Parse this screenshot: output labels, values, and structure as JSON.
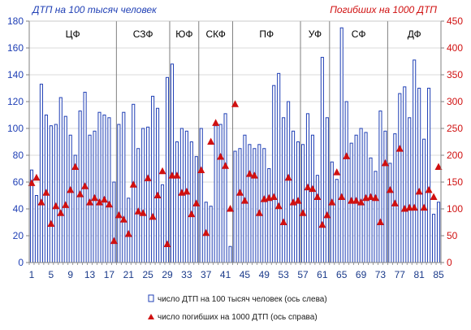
{
  "chart_data": {
    "type": "bar",
    "title_left": "ДТП на 100 тысяч человек",
    "title_right": "Погибших на 1000 ДТП",
    "colors": {
      "bar": "#1f3fb5",
      "marker": "#d01010",
      "grid": "#b8b8b8",
      "separator": "#808080"
    },
    "x": [
      1,
      2,
      3,
      4,
      5,
      6,
      7,
      8,
      9,
      10,
      11,
      12,
      13,
      14,
      15,
      16,
      17,
      18,
      19,
      20,
      21,
      22,
      23,
      24,
      25,
      26,
      27,
      28,
      29,
      30,
      31,
      32,
      33,
      34,
      35,
      36,
      37,
      38,
      39,
      40,
      41,
      42,
      43,
      44,
      45,
      46,
      47,
      48,
      49,
      50,
      51,
      52,
      53,
      54,
      55,
      56,
      57,
      58,
      59,
      60,
      61,
      62,
      63,
      64,
      65,
      66,
      67,
      68,
      69,
      70,
      71,
      72,
      73,
      74,
      75,
      76,
      77,
      78,
      79,
      80,
      81,
      82,
      83,
      84,
      85
    ],
    "x_tick_labels": [
      "1",
      "5",
      "9",
      "13",
      "17",
      "21",
      "25",
      "29",
      "33",
      "37",
      "41",
      "45",
      "49",
      "53",
      "57",
      "61",
      "65",
      "69",
      "73",
      "77",
      "81",
      "85"
    ],
    "x_tick_values": [
      1,
      5,
      9,
      13,
      17,
      21,
      25,
      29,
      33,
      37,
      41,
      45,
      49,
      53,
      57,
      61,
      65,
      69,
      73,
      77,
      81,
      85
    ],
    "y_left": {
      "min": 0,
      "max": 180,
      "ticks": [
        "0",
        "20",
        "40",
        "60",
        "80",
        "100",
        "120",
        "140",
        "160",
        "180"
      ]
    },
    "y_right": {
      "min": 0,
      "max": 450,
      "ticks": [
        "0",
        "50",
        "100",
        "150",
        "200",
        "250",
        "300",
        "350",
        "400",
        "450"
      ]
    },
    "regions": [
      {
        "label": "ЦФ",
        "start": 1,
        "end": 18
      },
      {
        "label": "СЗФ",
        "start": 19,
        "end": 29
      },
      {
        "label": "ЮФ",
        "start": 30,
        "end": 35
      },
      {
        "label": "СКФ",
        "start": 36,
        "end": 42
      },
      {
        "label": "ПФ",
        "start": 43,
        "end": 56
      },
      {
        "label": "УФ",
        "start": 57,
        "end": 62
      },
      {
        "label": "СФ",
        "start": 63,
        "end": 74
      },
      {
        "label": "ДФ",
        "start": 75,
        "end": 85
      }
    ],
    "series": [
      {
        "name": "число ДТП на 100 тысяч человек (ось слева)",
        "axis": "left",
        "values": [
          69,
          50,
          133,
          110,
          102,
          103,
          123,
          109,
          95,
          80,
          113,
          127,
          95,
          98,
          112,
          110,
          108,
          60,
          103,
          112,
          48,
          118,
          85,
          100,
          101,
          124,
          115,
          58,
          138,
          148,
          90,
          100,
          98,
          90,
          79,
          100,
          45,
          42,
          102,
          103,
          111,
          12,
          83,
          85,
          95,
          88,
          85,
          88,
          85,
          70,
          132,
          141,
          108,
          120,
          98,
          90,
          88,
          111,
          95,
          65,
          153,
          108,
          75,
          62,
          175,
          120,
          89,
          95,
          100,
          97,
          78,
          68,
          113,
          98,
          74,
          96,
          126,
          131,
          108,
          151,
          130,
          92,
          130,
          36,
          45
        ]
      },
      {
        "name": "число погибших на 1000 ДТП (ось справа)",
        "axis": "right",
        "values": [
          148,
          158,
          112,
          130,
          72,
          105,
          92,
          107,
          135,
          178,
          127,
          142,
          112,
          120,
          112,
          117,
          108,
          40,
          88,
          80,
          53,
          145,
          95,
          92,
          157,
          85,
          125,
          170,
          34,
          162,
          162,
          130,
          132,
          90,
          110,
          172,
          55,
          225,
          260,
          197,
          180,
          100,
          295,
          130,
          115,
          165,
          162,
          92,
          118,
          120,
          122,
          105,
          75,
          158,
          112,
          115,
          92,
          140,
          137,
          122,
          70,
          88,
          112,
          168,
          122,
          198,
          115,
          115,
          112,
          120,
          122,
          120,
          75,
          185,
          135,
          110,
          212,
          100,
          102,
          102,
          132,
          102,
          135,
          122,
          178
        ]
      }
    ],
    "legend": {
      "placement": "bottom-center"
    }
  }
}
